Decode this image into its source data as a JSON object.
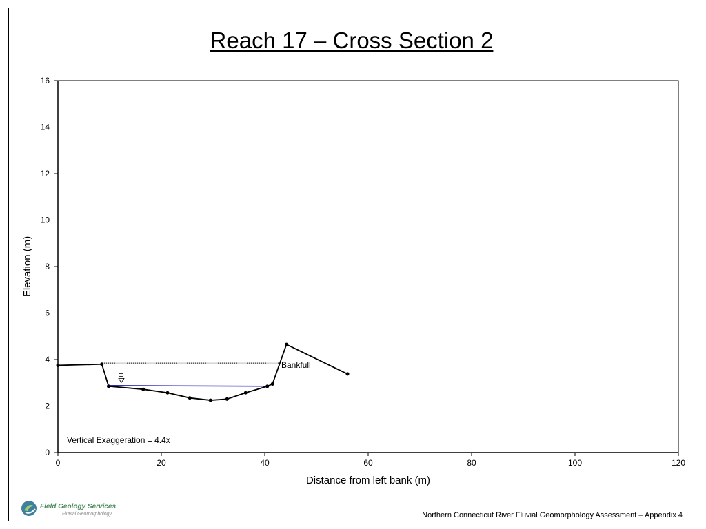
{
  "page": {
    "title": "Reach 17 – Cross Section 2",
    "footer": "Northern Connecticut River Fluvial Geomorphology Assessment – Appendix 4",
    "logo": {
      "name": "Field Geology Services",
      "subtitle": "Fluvial Geomorphology"
    }
  },
  "chart_data": {
    "type": "line",
    "title": "Reach 17 – Cross Section 2",
    "xlabel": "Distance from left bank (m)",
    "ylabel": "Elevation (m)",
    "xlim": [
      0,
      120
    ],
    "ylim": [
      0,
      16
    ],
    "xticks": [
      0,
      20,
      40,
      60,
      80,
      100,
      120
    ],
    "yticks": [
      0,
      2,
      4,
      6,
      8,
      10,
      12,
      14,
      16
    ],
    "grid": false,
    "series": [
      {
        "points": [
          [
            0,
            3.75
          ],
          [
            8.5,
            3.8
          ],
          [
            9.8,
            2.85
          ],
          [
            16.5,
            2.72
          ],
          [
            21.2,
            2.57
          ],
          [
            25.5,
            2.35
          ],
          [
            29.5,
            2.25
          ],
          [
            32.7,
            2.3
          ],
          [
            36.3,
            2.57
          ],
          [
            40.5,
            2.85
          ],
          [
            41.5,
            2.95
          ],
          [
            44.2,
            4.65
          ],
          [
            56,
            3.38
          ]
        ],
        "color": "#000000"
      },
      {
        "points": [
          [
            9.8,
            2.88
          ],
          [
            40.5,
            2.85
          ]
        ],
        "color": "#1f1fb4"
      },
      {
        "points": [
          [
            8.5,
            3.85
          ],
          [
            42.8,
            3.85
          ]
        ],
        "color": "#000000",
        "style": "dotted"
      }
    ],
    "annotations": [
      {
        "text": "Bankfull",
        "x": 43,
        "y": 3.85
      },
      {
        "text": "Vertical Exaggeration = 4.4x"
      }
    ],
    "water_symbol_at": [
      12,
      3.1
    ]
  }
}
